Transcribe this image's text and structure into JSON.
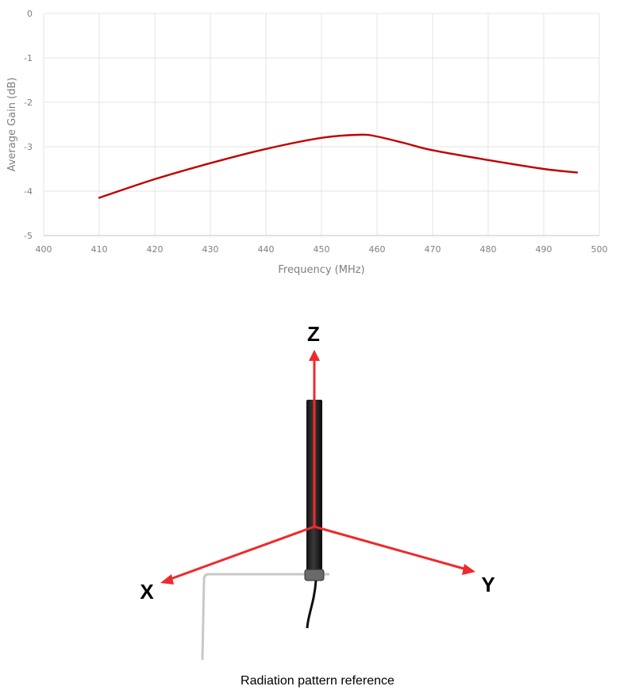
{
  "chart_data": {
    "type": "line",
    "title": "",
    "xlabel": "Frequency (MHz)",
    "ylabel": "Average Gain (dB)",
    "xlim": [
      400,
      500
    ],
    "ylim": [
      -5,
      0
    ],
    "grid": true,
    "legend": "none",
    "x_ticks": [
      "400",
      "410",
      "420",
      "430",
      "440",
      "450",
      "460",
      "470",
      "480",
      "490",
      "500"
    ],
    "y_ticks": [
      "0",
      "-1",
      "-2",
      "-3",
      "-4",
      "-5"
    ],
    "series": [
      {
        "name": "Average Gain",
        "color": "#c00000",
        "x": [
          410,
          420,
          430,
          440,
          450,
          457,
          460,
          465,
          470,
          480,
          490,
          496
        ],
        "values": [
          -4.15,
          -3.73,
          -3.37,
          -3.05,
          -2.8,
          -2.73,
          -2.77,
          -2.92,
          -3.08,
          -3.3,
          -3.5,
          -3.58
        ]
      }
    ]
  },
  "diagram": {
    "axes": {
      "z": "Z",
      "x": "X",
      "y": "Y"
    },
    "arrow_color": "#ee2a2a",
    "caption": "Radiation pattern reference"
  }
}
